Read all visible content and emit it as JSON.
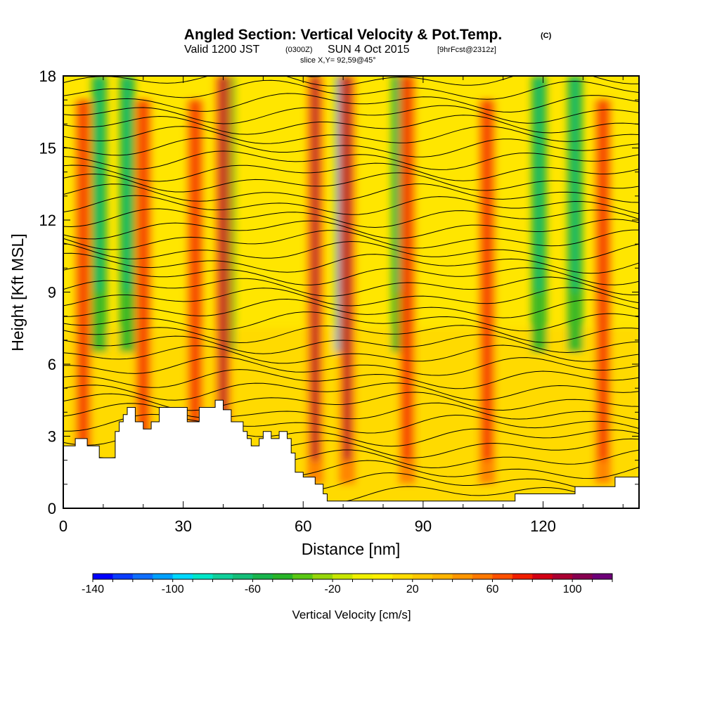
{
  "chart_data": {
    "type": "heatmap",
    "title": "Angled Section: Vertical Velocity & Pot.Temp.",
    "title_unit": "(C)",
    "subtitle_valid": "Valid 1200 JST",
    "subtitle_zulu": "(0300Z)",
    "subtitle_date": "SUN 4 Oct 2015",
    "subtitle_fcst": "[9hrFcst@2312z]",
    "slice_label": "slice X,Y= 92,59@45°",
    "xlabel": "Distance [nm]",
    "ylabel": "Height [Kft MSL]",
    "xlim": [
      0,
      144
    ],
    "ylim": [
      0,
      18
    ],
    "xticks": [
      "0",
      "30",
      "60",
      "90",
      "120"
    ],
    "yticks": [
      "0",
      "3",
      "6",
      "9",
      "12",
      "15",
      "18"
    ],
    "colorbar": {
      "title": "Vertical Velocity [cm/s]",
      "range": [
        -140,
        120
      ],
      "step": 10,
      "tick_labels": [
        "-140",
        "-100",
        "-60",
        "-20",
        "20",
        "60",
        "100"
      ],
      "colors": [
        "#0000ff",
        "#0a3cff",
        "#0f6eff",
        "#00a0ff",
        "#00d8ff",
        "#00e6c8",
        "#10cf9a",
        "#14be78",
        "#18b44c",
        "#28b428",
        "#5ac814",
        "#96d60a",
        "#c8e600",
        "#f0f000",
        "#fff000",
        "#ffdc00",
        "#ffc800",
        "#ffb400",
        "#ff9600",
        "#ff7800",
        "#ff5000",
        "#f01e00",
        "#d20014",
        "#aa0032",
        "#870050",
        "#6e0078"
      ]
    },
    "updraft_columns_nm": [
      5,
      20,
      33,
      40,
      63,
      71,
      86,
      106,
      135
    ],
    "downdraft_columns_nm": [
      9,
      16,
      41,
      70,
      84,
      119,
      128
    ],
    "theta_contours": {
      "interval_c": 2,
      "count": 38
    },
    "grid": false,
    "terrain_height_kft": [
      [
        0,
        2.6
      ],
      [
        3,
        2.6
      ],
      [
        3,
        2.9
      ],
      [
        6,
        2.9
      ],
      [
        6,
        2.6
      ],
      [
        9,
        2.6
      ],
      [
        9,
        2.1
      ],
      [
        13,
        2.1
      ],
      [
        13,
        3.2
      ],
      [
        14,
        3.2
      ],
      [
        14,
        3.6
      ],
      [
        15,
        3.6
      ],
      [
        15,
        3.9
      ],
      [
        16,
        3.9
      ],
      [
        16,
        4.2
      ],
      [
        18,
        4.2
      ],
      [
        18,
        3.6
      ],
      [
        20,
        3.6
      ],
      [
        20,
        3.3
      ],
      [
        22,
        3.3
      ],
      [
        22,
        3.6
      ],
      [
        24,
        3.6
      ],
      [
        24,
        4.2
      ],
      [
        31,
        4.2
      ],
      [
        31,
        3.6
      ],
      [
        34,
        3.6
      ],
      [
        34,
        4.2
      ],
      [
        38,
        4.2
      ],
      [
        38,
        4.5
      ],
      [
        40,
        4.5
      ],
      [
        40,
        4.1
      ],
      [
        42,
        4.1
      ],
      [
        42,
        3.6
      ],
      [
        45,
        3.6
      ],
      [
        45,
        3.2
      ],
      [
        46,
        3.2
      ],
      [
        46,
        2.9
      ],
      [
        47,
        2.9
      ],
      [
        47,
        2.6
      ],
      [
        49,
        2.6
      ],
      [
        49,
        2.9
      ],
      [
        50,
        2.9
      ],
      [
        50,
        3.2
      ],
      [
        52,
        3.2
      ],
      [
        52,
        2.9
      ],
      [
        54,
        2.9
      ],
      [
        54,
        3.2
      ],
      [
        56,
        3.2
      ],
      [
        56,
        2.9
      ],
      [
        57,
        2.9
      ],
      [
        57,
        2.3
      ],
      [
        58,
        2.3
      ],
      [
        58,
        1.5
      ],
      [
        60,
        1.5
      ],
      [
        60,
        1.3
      ],
      [
        63,
        1.3
      ],
      [
        63,
        1.0
      ],
      [
        65,
        1.0
      ],
      [
        65,
        0.6
      ],
      [
        66,
        0.6
      ],
      [
        66,
        0.3
      ],
      [
        113,
        0.3
      ],
      [
        113,
        0.6
      ],
      [
        128,
        0.6
      ],
      [
        128,
        0.9
      ],
      [
        138,
        0.9
      ],
      [
        138,
        1.3
      ],
      [
        144,
        1.3
      ]
    ]
  }
}
